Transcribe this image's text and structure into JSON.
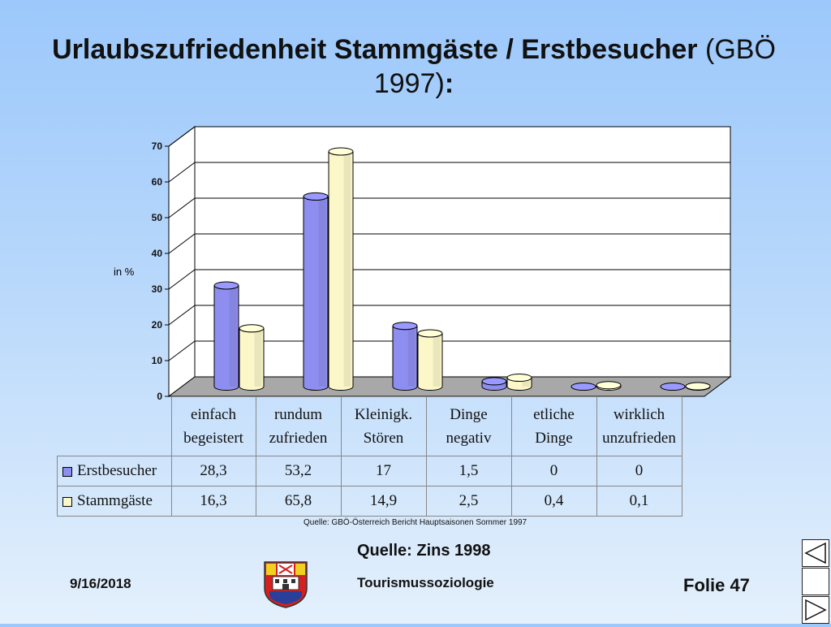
{
  "title": {
    "bold": "Urlaubszufriedenheit Stammgäste / Erstbesucher",
    "paren": "(GBÖ 1997)",
    "colon": ":"
  },
  "chart_data": {
    "type": "bar",
    "categories": [
      "einfach begeistert",
      "rundum zufrieden",
      "Kleinigk. Stören",
      "Dinge negativ",
      "etliche Dinge",
      "wirklich unzufrieden"
    ],
    "category_lines": [
      [
        "einfach",
        "begeistert"
      ],
      [
        "rundum",
        "zufrieden"
      ],
      [
        "Kleinigk.",
        "Stören"
      ],
      [
        "Dinge",
        "negativ"
      ],
      [
        "etliche",
        "Dinge"
      ],
      [
        "wirklich",
        "unzufrieden"
      ]
    ],
    "series": [
      {
        "name": "Erstbesucher",
        "values": [
          28.3,
          53.2,
          17,
          1.5,
          0,
          0
        ],
        "labels": [
          "28,3",
          "53,2",
          "17",
          "1,5",
          "0",
          "0"
        ],
        "color": "#8e8ef0"
      },
      {
        "name": "Stammgäste",
        "values": [
          16.3,
          65.8,
          14.9,
          2.5,
          0.4,
          0.1
        ],
        "labels": [
          "16,3",
          "65,8",
          "14,9",
          "2,5",
          "0,4",
          "0,1"
        ],
        "color": "#fbf7c8"
      }
    ],
    "ylabel": "in %",
    "ylim": [
      0,
      70
    ],
    "yticks": [
      0,
      10,
      20,
      30,
      40,
      50,
      60,
      70
    ],
    "grid": true,
    "style": "3d-cylinder",
    "legend": "data-table"
  },
  "source_note": "Quelle: GBÖ-Österreich Bericht Hauptsaisonen Sommer 1997",
  "source": "Quelle: Zins 1998",
  "footer": {
    "date": "9/16/2018",
    "title": "Tourismussoziologie",
    "slide": "Folie 47"
  },
  "colors": {
    "bg_top": "#9cc8fb",
    "bg_bottom": "#e4f0fc",
    "plot_wall": "#ffffff",
    "floor": "#a8a8a8"
  }
}
